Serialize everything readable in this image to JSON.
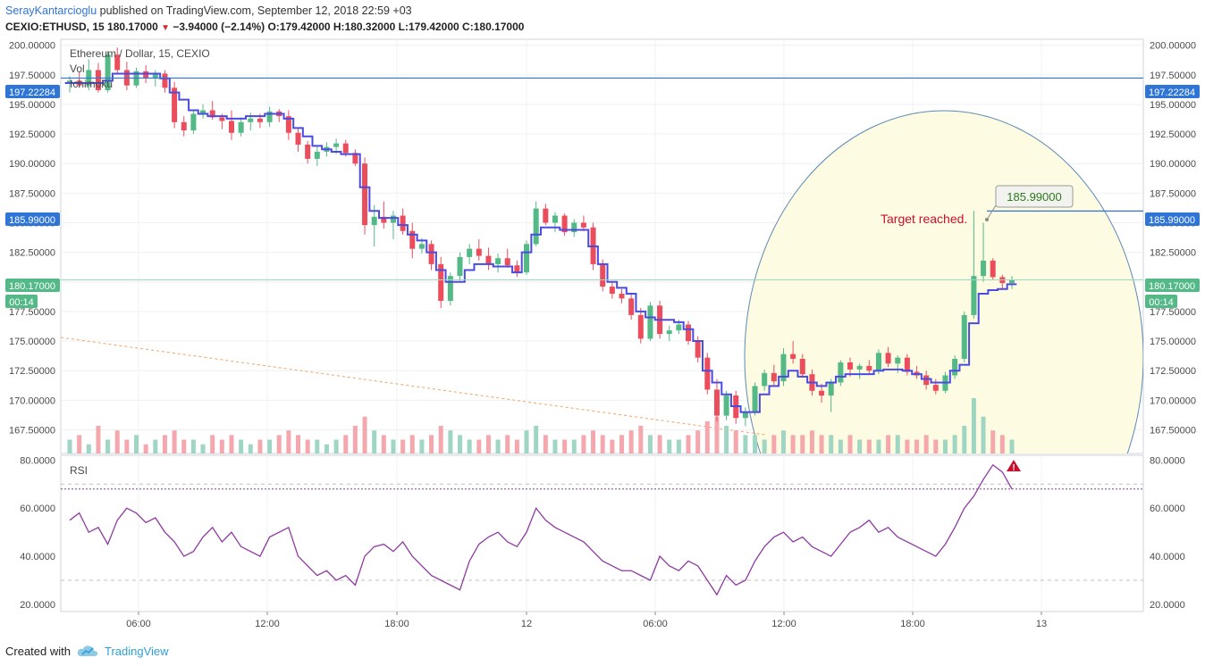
{
  "header": {
    "author": "SerayKantarcioglu",
    "published_text": "published on TradingView.com, September 12, 2018 22:59 +03",
    "symbol": "CEXIO:ETHUSD, 15",
    "last": "180.17000",
    "change": "−3.94000 (−2.14%)",
    "o_label": "O:",
    "o": "179.42000",
    "h_label": "H:",
    "h": "180.32000",
    "l_label": "L:",
    "l": "179.42000",
    "c_label": "C:",
    "c": "180.17000"
  },
  "legend": {
    "instrument": "Ethereum / Dollar, 15, CEXIO",
    "vol": "Vol",
    "ichimoku": "Ichimoku",
    "rsi": "RSI"
  },
  "annotations": {
    "target_text": "Target reached.",
    "target_callout": "185.99000"
  },
  "price_badges": {
    "resistance": "197.22284",
    "target": "185.99000",
    "last": "180.17000",
    "countdown": "00:14"
  },
  "footer": {
    "created_with": "Created with",
    "brand": "TradingView"
  },
  "colors": {
    "up": "#53b987",
    "down": "#eb4d5c",
    "vol_up": "#9fd6c3",
    "vol_down": "#f4a8ad",
    "ichimoku": "#4b4be0",
    "rsi": "#8e3aa1",
    "hline": "#2e75d6",
    "circle_fill": "#fdfbe1",
    "circle_stroke": "#5b8ab5",
    "target_text": "#c8102e"
  },
  "chart_data": {
    "type": "candlestick",
    "x_ticks": [
      "06:00",
      "12:00",
      "18:00",
      "12",
      "06:00",
      "12:00",
      "18:00",
      "13"
    ],
    "price_axis_ticks": [
      "200.00000",
      "197.50000",
      "195.00000",
      "192.50000",
      "190.00000",
      "187.50000",
      "185.00000",
      "182.50000",
      "180.00000",
      "177.50000",
      "175.00000",
      "172.50000",
      "170.00000",
      "167.50000"
    ],
    "rsi_axis_ticks": [
      "80.0000",
      "60.0000",
      "40.0000",
      "20.0000"
    ],
    "price_range": [
      165.5,
      200.5
    ],
    "rsi_range": [
      17,
      82
    ],
    "hlines": [
      197.22284,
      185.99,
      180.17
    ],
    "candles": [
      [
        196.8,
        197.4,
        196.0,
        197.0
      ],
      [
        197.0,
        197.8,
        196.4,
        196.6
      ],
      [
        196.6,
        198.8,
        196.2,
        197.9
      ],
      [
        197.9,
        198.5,
        196.0,
        196.2
      ],
      [
        196.2,
        199.5,
        196.0,
        199.2
      ],
      [
        199.2,
        199.8,
        197.6,
        197.9
      ],
      [
        197.9,
        198.6,
        196.2,
        196.6
      ],
      [
        196.6,
        198.1,
        196.4,
        197.8
      ],
      [
        197.8,
        198.3,
        196.8,
        197.2
      ],
      [
        197.2,
        197.9,
        196.5,
        197.6
      ],
      [
        197.6,
        197.9,
        196.0,
        196.4
      ],
      [
        196.4,
        196.9,
        193.0,
        193.5
      ],
      [
        193.5,
        194.0,
        192.3,
        192.8
      ],
      [
        192.8,
        194.5,
        192.5,
        194.2
      ],
      [
        194.2,
        195.0,
        193.8,
        194.5
      ],
      [
        194.5,
        195.3,
        193.7,
        193.9
      ],
      [
        193.9,
        194.2,
        192.9,
        193.6
      ],
      [
        193.6,
        194.5,
        192.0,
        192.6
      ],
      [
        192.6,
        193.9,
        192.3,
        193.5
      ],
      [
        193.5,
        194.3,
        192.8,
        193.8
      ],
      [
        193.8,
        194.2,
        193.0,
        193.5
      ],
      [
        193.5,
        194.8,
        193.1,
        194.4
      ],
      [
        194.4,
        194.6,
        193.5,
        194.0
      ],
      [
        194.0,
        194.5,
        192.0,
        192.6
      ],
      [
        192.6,
        193.0,
        191.0,
        191.6
      ],
      [
        191.6,
        191.9,
        190.0,
        190.4
      ],
      [
        190.4,
        191.5,
        189.8,
        191.0
      ],
      [
        191.0,
        191.8,
        190.6,
        191.4
      ],
      [
        191.4,
        192.1,
        190.8,
        191.7
      ],
      [
        191.7,
        192.0,
        190.6,
        190.9
      ],
      [
        190.9,
        191.2,
        189.8,
        190.0
      ],
      [
        190.0,
        190.5,
        184.0,
        184.8
      ],
      [
        184.8,
        186.5,
        183.0,
        185.5
      ],
      [
        185.5,
        186.8,
        184.5,
        185.0
      ],
      [
        185.0,
        186.0,
        183.6,
        185.6
      ],
      [
        185.6,
        186.2,
        184.0,
        184.3
      ],
      [
        184.3,
        185.0,
        182.0,
        182.8
      ],
      [
        182.8,
        183.7,
        182.4,
        183.2
      ],
      [
        183.2,
        183.5,
        181.0,
        181.5
      ],
      [
        181.5,
        182.1,
        177.8,
        178.4
      ],
      [
        178.4,
        180.8,
        178.0,
        180.5
      ],
      [
        180.5,
        182.5,
        180.1,
        182.1
      ],
      [
        182.1,
        183.2,
        181.5,
        182.8
      ],
      [
        182.8,
        183.6,
        181.8,
        182.2
      ],
      [
        182.2,
        182.9,
        181.0,
        181.5
      ],
      [
        181.5,
        182.4,
        180.8,
        182.0
      ],
      [
        182.0,
        182.8,
        181.2,
        181.4
      ],
      [
        181.4,
        181.8,
        180.4,
        180.8
      ],
      [
        180.8,
        183.5,
        180.6,
        183.2
      ],
      [
        183.2,
        186.8,
        183.0,
        186.2
      ],
      [
        186.2,
        186.6,
        184.8,
        185.0
      ],
      [
        185.0,
        185.9,
        184.2,
        185.6
      ],
      [
        185.6,
        185.8,
        183.9,
        184.2
      ],
      [
        184.2,
        185.3,
        183.8,
        185.0
      ],
      [
        185.0,
        185.6,
        184.3,
        184.6
      ],
      [
        184.6,
        185.0,
        181.0,
        181.5
      ],
      [
        181.5,
        181.9,
        179.2,
        179.6
      ],
      [
        179.6,
        180.0,
        178.6,
        179.0
      ],
      [
        179.0,
        179.4,
        178.2,
        178.6
      ],
      [
        178.6,
        179.1,
        176.8,
        177.2
      ],
      [
        177.2,
        177.8,
        174.8,
        175.2
      ],
      [
        175.2,
        178.3,
        175.0,
        178.0
      ],
      [
        178.0,
        178.4,
        175.2,
        175.6
      ],
      [
        175.6,
        176.3,
        175.0,
        175.9
      ],
      [
        175.9,
        176.8,
        175.6,
        176.4
      ],
      [
        176.4,
        176.7,
        174.7,
        175.0
      ],
      [
        175.0,
        175.4,
        173.2,
        173.6
      ],
      [
        173.6,
        174.0,
        170.5,
        170.9
      ],
      [
        170.9,
        171.8,
        168.2,
        168.7
      ],
      [
        168.7,
        170.8,
        168.3,
        170.4
      ],
      [
        170.4,
        170.8,
        168.0,
        168.5
      ],
      [
        168.5,
        169.4,
        167.8,
        169.0
      ],
      [
        169.0,
        171.5,
        168.7,
        171.2
      ],
      [
        171.2,
        172.6,
        170.8,
        172.3
      ],
      [
        172.3,
        173.0,
        171.3,
        171.6
      ],
      [
        171.6,
        174.4,
        171.2,
        173.9
      ],
      [
        173.9,
        175.0,
        173.1,
        173.5
      ],
      [
        173.5,
        173.9,
        171.9,
        172.2
      ],
      [
        172.2,
        172.6,
        170.4,
        170.8
      ],
      [
        170.8,
        171.4,
        169.8,
        170.4
      ],
      [
        170.4,
        171.8,
        169.0,
        171.5
      ],
      [
        171.5,
        173.4,
        171.2,
        173.2
      ],
      [
        173.2,
        173.6,
        172.0,
        172.6
      ],
      [
        172.6,
        173.1,
        171.8,
        172.9
      ],
      [
        172.9,
        173.4,
        172.2,
        172.5
      ],
      [
        172.5,
        174.3,
        172.2,
        174.0
      ],
      [
        174.0,
        174.5,
        172.8,
        173.1
      ],
      [
        173.1,
        173.8,
        172.3,
        173.6
      ],
      [
        173.6,
        173.9,
        172.1,
        172.4
      ],
      [
        172.4,
        172.9,
        171.8,
        172.1
      ],
      [
        172.1,
        172.5,
        170.9,
        171.3
      ],
      [
        171.3,
        171.8,
        170.5,
        170.8
      ],
      [
        170.8,
        172.4,
        170.6,
        172.1
      ],
      [
        172.1,
        173.8,
        171.8,
        173.5
      ],
      [
        173.5,
        177.5,
        173.2,
        177.2
      ],
      [
        177.2,
        186.0,
        176.9,
        180.5
      ],
      [
        180.5,
        185.0,
        180.0,
        181.8
      ],
      [
        181.8,
        182.0,
        180.2,
        180.4
      ],
      [
        180.4,
        180.6,
        179.4,
        179.9
      ],
      [
        179.9,
        180.5,
        179.4,
        180.2
      ]
    ],
    "volumes": [
      3,
      4,
      2,
      6,
      3,
      5,
      3,
      4,
      2,
      3,
      4,
      5,
      3,
      3,
      2,
      4,
      3,
      4,
      3,
      2,
      3,
      3,
      4,
      5,
      4,
      3,
      3,
      2,
      3,
      4,
      6,
      8,
      5,
      4,
      3,
      3,
      4,
      3,
      4,
      6,
      5,
      4,
      3,
      3,
      4,
      3,
      4,
      3,
      5,
      6,
      4,
      3,
      3,
      3,
      4,
      5,
      4,
      3,
      4,
      5,
      6,
      4,
      4,
      3,
      3,
      4,
      5,
      7,
      8,
      6,
      5,
      4,
      4,
      3,
      4,
      5,
      4,
      4,
      5,
      4,
      4,
      3,
      4,
      3,
      3,
      3,
      4,
      4,
      3,
      3,
      4,
      3,
      3,
      4,
      6,
      12,
      8,
      5,
      4,
      3
    ],
    "ichimoku": [
      196.8,
      196.8,
      196.8,
      196.8,
      197.0,
      197.6,
      197.6,
      197.6,
      197.6,
      197.6,
      197.2,
      196.0,
      195.4,
      194.5,
      194.2,
      194.0,
      194.0,
      193.8,
      193.8,
      194.0,
      194.0,
      194.2,
      194.2,
      193.8,
      193.0,
      192.3,
      191.5,
      191.2,
      191.0,
      190.8,
      190.8,
      188.0,
      186.0,
      185.4,
      185.4,
      184.8,
      184.0,
      183.5,
      182.5,
      181.0,
      180.0,
      180.0,
      181.0,
      181.5,
      181.5,
      181.3,
      181.3,
      180.8,
      182.5,
      184.0,
      184.6,
      184.6,
      184.4,
      184.4,
      184.4,
      183.0,
      181.5,
      180.0,
      179.5,
      179.0,
      177.5,
      177.0,
      176.8,
      176.8,
      176.6,
      176.0,
      175.0,
      172.5,
      171.5,
      170.5,
      169.5,
      169.0,
      169.0,
      170.5,
      171.2,
      172.0,
      172.5,
      172.0,
      171.5,
      171.2,
      171.5,
      172.0,
      172.2,
      172.2,
      172.2,
      172.5,
      172.6,
      172.6,
      172.5,
      172.2,
      171.8,
      171.5,
      171.5,
      172.5,
      173.0,
      176.5,
      179.0,
      179.3,
      179.4,
      179.8
    ],
    "rsi": [
      55,
      58,
      50,
      52,
      45,
      55,
      60,
      58,
      54,
      56,
      50,
      46,
      40,
      42,
      48,
      52,
      46,
      50,
      44,
      42,
      40,
      48,
      50,
      52,
      40,
      36,
      32,
      34,
      30,
      32,
      28,
      40,
      44,
      45,
      42,
      46,
      40,
      36,
      32,
      30,
      28,
      26,
      38,
      45,
      48,
      50,
      46,
      44,
      50,
      60,
      55,
      52,
      50,
      48,
      46,
      42,
      38,
      36,
      34,
      34,
      32,
      30,
      40,
      36,
      34,
      38,
      36,
      30,
      24,
      32,
      28,
      30,
      38,
      44,
      48,
      50,
      46,
      48,
      44,
      42,
      40,
      45,
      50,
      52,
      55,
      50,
      52,
      48,
      46,
      44,
      42,
      40,
      45,
      52,
      60,
      65,
      72,
      78,
      75,
      68
    ]
  }
}
